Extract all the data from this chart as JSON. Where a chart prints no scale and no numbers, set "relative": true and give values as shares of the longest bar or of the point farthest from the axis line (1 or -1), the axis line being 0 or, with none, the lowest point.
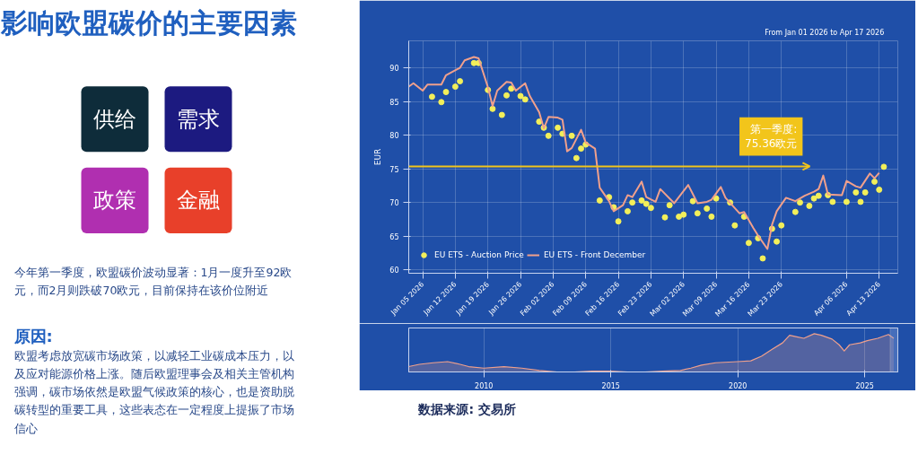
{
  "chart_data": [
    {
      "type": "line",
      "subtitle": "From   Jan 01 2026   to   Apr 17 2026",
      "ylabel": "EUR",
      "xlim": [
        "2026-01-02",
        "2026-04-17"
      ],
      "ylim": [
        59.5,
        94
      ],
      "xticks": [
        {
          "value": "2026-01-05",
          "label": "Jan 05 2026"
        },
        {
          "value": "2026-01-12",
          "label": "Jan 12 2026"
        },
        {
          "value": "2026-01-19",
          "label": "Jan 19 2026"
        },
        {
          "value": "2026-01-26",
          "label": "Jan 26 2026"
        },
        {
          "value": "2026-02-02",
          "label": "Feb 02 2026"
        },
        {
          "value": "2026-02-09",
          "label": "Feb 09 2026"
        },
        {
          "value": "2026-02-16",
          "label": "Feb 16 2026"
        },
        {
          "value": "2026-02-23",
          "label": "Feb 23 2026"
        },
        {
          "value": "2026-03-02",
          "label": "Mar 02 2026"
        },
        {
          "value": "2026-03-09",
          "label": "Mar 09 2026"
        },
        {
          "value": "2026-03-16",
          "label": "Mar 16 2026"
        },
        {
          "value": "2026-03-23",
          "label": "Mar 23 2026"
        },
        {
          "value": "2026-04-06",
          "label": "Apr 06 2026"
        },
        {
          "value": "2026-04-13",
          "label": "Apr 13 2026"
        }
      ],
      "yticks": [
        60,
        65,
        70,
        75,
        80,
        85,
        90
      ],
      "grid": true,
      "legend": "bottom left",
      "ref_lines": [
        {
          "axis": "y",
          "value": 75.36,
          "label": "第一季度:\n75.36欧元",
          "color": "#f2c51b"
        }
      ],
      "series": [
        {
          "name": "EU ETS - Auction Price",
          "type": "scatter",
          "marker": "circle",
          "color": "#f2ef5a",
          "x": [
            "2026-01-07",
            "2026-01-09",
            "2026-01-10",
            "2026-01-12",
            "2026-01-13",
            "2026-01-16",
            "2026-01-17",
            "2026-01-19",
            "2026-01-20",
            "2026-01-22",
            "2026-01-23",
            "2026-01-24",
            "2026-01-26",
            "2026-01-27",
            "2026-01-30",
            "2026-01-31",
            "2026-02-01",
            "2026-02-03",
            "2026-02-04",
            "2026-02-06",
            "2026-02-07",
            "2026-02-08",
            "2026-02-09",
            "2026-02-12",
            "2026-02-14",
            "2026-02-15",
            "2026-02-16",
            "2026-02-18",
            "2026-02-19",
            "2026-02-21",
            "2026-02-22",
            "2026-02-23",
            "2026-02-26",
            "2026-02-27",
            "2026-03-01",
            "2026-03-02",
            "2026-03-04",
            "2026-03-05",
            "2026-03-07",
            "2026-03-08",
            "2026-03-09",
            "2026-03-12",
            "2026-03-13",
            "2026-03-15",
            "2026-03-16",
            "2026-03-18",
            "2026-03-19",
            "2026-03-21",
            "2026-03-22",
            "2026-03-23",
            "2026-03-26",
            "2026-03-27",
            "2026-03-29",
            "2026-03-30",
            "2026-03-31",
            "2026-04-02",
            "2026-04-03",
            "2026-04-06",
            "2026-04-08",
            "2026-04-09",
            "2026-04-10",
            "2026-04-12",
            "2026-04-13",
            "2026-04-14"
          ],
          "values": [
            85.7,
            84.9,
            86.4,
            87.2,
            88,
            90.7,
            90.7,
            86.7,
            83.9,
            83,
            85.9,
            86.9,
            85.8,
            85.3,
            82,
            81.1,
            79.9,
            81.1,
            80.2,
            79.9,
            76.6,
            78,
            78.6,
            70.3,
            70.8,
            69.3,
            67.2,
            68.7,
            70,
            70.3,
            69.8,
            69.2,
            67.8,
            69.6,
            67.9,
            68.2,
            70.2,
            68.4,
            69.1,
            67.9,
            70.6,
            70,
            66.6,
            67.9,
            64,
            64.7,
            61.7,
            66.1,
            64.2,
            66.6,
            68.6,
            70,
            69.5,
            70.6,
            71,
            71.1,
            70.1,
            70.1,
            71.5,
            70.1,
            71.5,
            73.1,
            71.9,
            75.3
          ]
        },
        {
          "name": "EU ETS - Front December",
          "type": "line",
          "line_style": "solid",
          "color": "#f0a08c",
          "x": [
            "2026-01-02",
            "2026-01-03",
            "2026-01-05",
            "2026-01-06",
            "2026-01-09",
            "2026-01-10",
            "2026-01-13",
            "2026-01-14",
            "2026-01-16",
            "2026-01-17",
            "2026-01-19",
            "2026-01-20",
            "2026-01-21",
            "2026-01-23",
            "2026-01-24",
            "2026-01-25",
            "2026-01-27",
            "2026-01-28",
            "2026-01-30",
            "2026-01-31",
            "2026-02-01",
            "2026-02-03",
            "2026-02-04",
            "2026-02-05",
            "2026-02-06",
            "2026-02-08",
            "2026-02-09",
            "2026-02-11",
            "2026-02-12",
            "2026-02-14",
            "2026-02-15",
            "2026-02-17",
            "2026-02-18",
            "2026-02-19",
            "2026-02-21",
            "2026-02-22",
            "2026-02-24",
            "2026-02-25",
            "2026-02-28",
            "2026-03-03",
            "2026-03-05",
            "2026-03-07",
            "2026-03-08",
            "2026-03-10",
            "2026-03-11",
            "2026-03-14",
            "2026-03-15",
            "2026-03-17",
            "2026-03-18",
            "2026-03-20",
            "2026-03-21",
            "2026-03-22",
            "2026-03-24",
            "2026-03-26",
            "2026-03-28",
            "2026-03-30",
            "2026-03-31",
            "2026-04-01",
            "2026-04-02",
            "2026-04-05",
            "2026-04-06",
            "2026-04-08",
            "2026-04-09",
            "2026-04-11",
            "2026-04-12",
            "2026-04-13"
          ],
          "values": [
            87.2,
            87.7,
            86.6,
            87.5,
            87.5,
            88.9,
            90,
            91.1,
            91.6,
            91.4,
            87.1,
            84.3,
            86.6,
            87.9,
            87.8,
            86.6,
            87.7,
            85.8,
            83.4,
            81,
            82.7,
            82.6,
            82.3,
            77.6,
            78.1,
            80.8,
            78.9,
            78,
            72.2,
            70.2,
            68.7,
            69.6,
            71.1,
            70.8,
            73.1,
            70.8,
            70.1,
            72,
            69.9,
            72.6,
            69.9,
            70.1,
            70.4,
            72.3,
            70.7,
            68.4,
            68.6,
            66.2,
            65.1,
            63.1,
            66.7,
            68.7,
            70.7,
            70.2,
            71,
            71.6,
            72,
            74,
            71.2,
            71.1,
            73.2,
            72.4,
            72.2,
            74.3,
            73.6,
            74.4
          ]
        }
      ],
      "annotations": [
        "数据来源: 交易所"
      ]
    },
    {
      "type": "area",
      "relative": true,
      "tick_labels": "x",
      "grid": "x",
      "xlim": [
        2007.04,
        2026.3
      ],
      "xticks": [
        2010,
        2015,
        2020,
        2025
      ],
      "bands": [
        {
          "axis": "x",
          "from": 2026.0,
          "to": 2026.3,
          "color": "#8fa8e0"
        }
      ],
      "series": [
        {
          "color": "#f0a08c",
          "x": [
            2007.04,
            2007.46,
            2008.01,
            2008.57,
            2009.06,
            2009.4,
            2010.0,
            2010.79,
            2011.49,
            2012.18,
            2012.88,
            2013.57,
            2014.26,
            2015.0,
            2015.65,
            2016.35,
            2017.04,
            2017.74,
            2018.15,
            2018.57,
            2019.13,
            2019.99,
            2020.51,
            2020.93,
            2021.35,
            2021.76,
            2022.04,
            2022.32,
            2022.6,
            2023.01,
            2023.29,
            2023.71,
            2023.99,
            2024.19,
            2024.4,
            2024.82,
            2025.1,
            2025.51,
            2025.93,
            2026.14
          ],
          "values": [
            0.14,
            0.2,
            0.24,
            0.27,
            0.2,
            0.14,
            0.1,
            0.14,
            0.1,
            0.04,
            0,
            0,
            0.02,
            0.02,
            0,
            0,
            0.02,
            0.04,
            0.1,
            0.18,
            0.24,
            0.27,
            0.29,
            0.41,
            0.59,
            0.76,
            0.96,
            0.92,
            0.88,
            1,
            0.96,
            0.86,
            0.71,
            0.55,
            0.71,
            0.76,
            0.82,
            0.88,
            0.98,
            0.88
          ]
        }
      ]
    },
    {
      "type": "other",
      "title": "影响欧盟碳价的主要因素",
      "categories": [
        "供给",
        "需求",
        "政策",
        "金融"
      ],
      "colors": [
        "#0e2c3a",
        "#1c1a80",
        "#b02fb0",
        "#e8402a"
      ],
      "annotations": [
        "今年第一季度，欧盟碳价波动显著：1月一度升至92欧元，而2月则跌破70欧元，目前保持在该价位附近",
        "原因:",
        "欧盟考虑放宽碳市场政策，以减轻工业碳成本压力，以及应对能源价格上涨。随后欧盟理事会及相关主管机构强调，碳市场依然是欧盟气候政策的核心，也是资助脱碳转型的重要工具，这些表态在一定程度上提振了市场信心"
      ]
    }
  ]
}
